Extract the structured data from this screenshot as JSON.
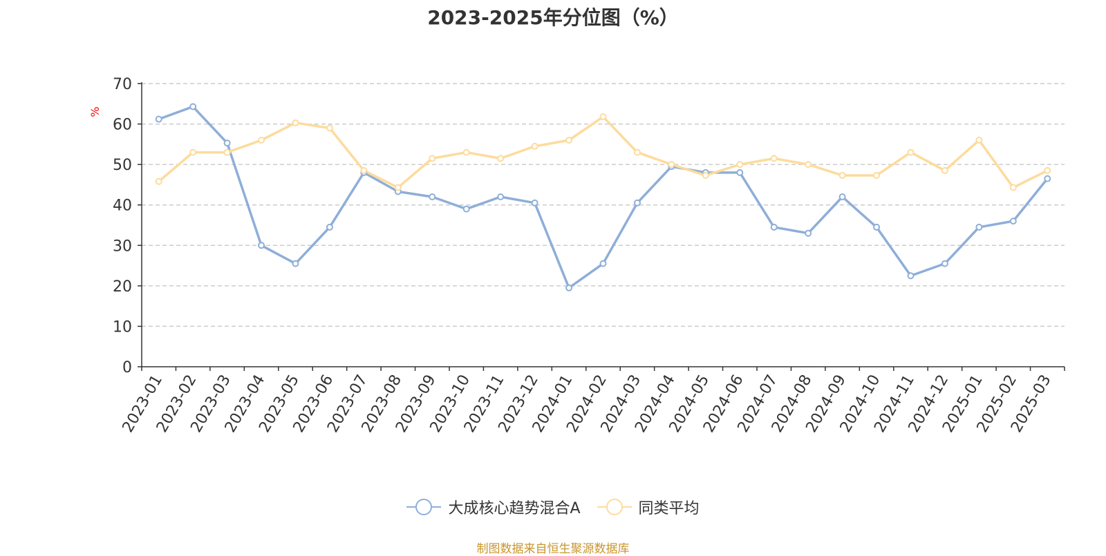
{
  "title": "2023-2025年分位图（%）",
  "source": "制图数据来自恒生聚源数据库",
  "chart_data": {
    "type": "line",
    "title": "2023-2025年分位图（%）",
    "xlabel": "",
    "ylabel": "%",
    "ylim": [
      0,
      70
    ],
    "yticks": [
      0,
      10,
      20,
      30,
      40,
      50,
      60,
      70
    ],
    "grid": true,
    "legend_position": "bottom",
    "categories": [
      "2023-01",
      "2023-02",
      "2023-03",
      "2023-04",
      "2023-05",
      "2023-06",
      "2023-07",
      "2023-08",
      "2023-09",
      "2023-10",
      "2023-11",
      "2023-12",
      "2024-01",
      "2024-02",
      "2024-03",
      "2024-04",
      "2024-05",
      "2024-06",
      "2024-07",
      "2024-08",
      "2024-09",
      "2024-10",
      "2024-11",
      "2024-12",
      "2025-01",
      "2025-02",
      "2025-03"
    ],
    "series": [
      {
        "name": "大成核心趋势混合A",
        "color": "#8eaed8",
        "values": [
          61.2,
          64.3,
          55.3,
          30.0,
          25.5,
          34.5,
          48.0,
          43.3,
          42.0,
          39.0,
          42.0,
          40.5,
          19.5,
          25.5,
          40.5,
          49.5,
          48.0,
          48.0,
          34.5,
          33.0,
          42.0,
          34.5,
          22.5,
          25.5,
          34.5,
          36.0,
          46.5
        ]
      },
      {
        "name": "同类平均",
        "color": "#fddb9c",
        "values": [
          45.8,
          53.0,
          53.0,
          56.0,
          60.3,
          59.0,
          48.5,
          44.3,
          51.5,
          53.0,
          51.5,
          54.5,
          56.0,
          61.8,
          53.0,
          50.0,
          47.3,
          50.0,
          51.5,
          50.0,
          47.3,
          47.3,
          53.0,
          48.5,
          56.0,
          44.3,
          48.5
        ]
      }
    ]
  }
}
